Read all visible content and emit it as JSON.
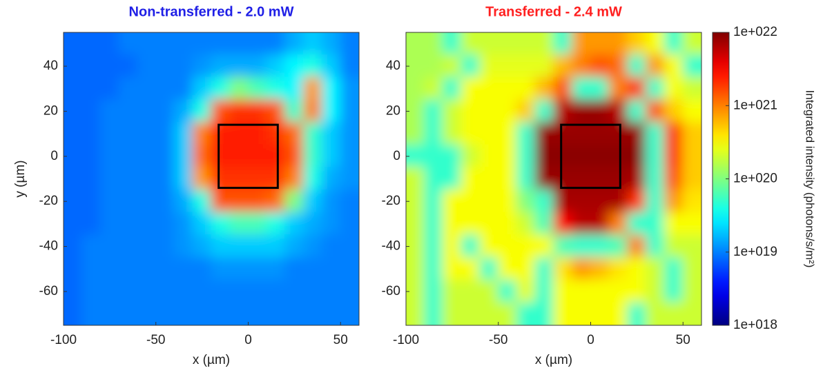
{
  "chart_data": [
    {
      "type": "heatmap",
      "title": "Non-transferred - 2.0 mW",
      "title_color": "#1f1fe6",
      "xlabel": "x (µm)",
      "ylabel": "y (µm)",
      "xlim": [
        -100,
        60
      ],
      "ylim": [
        -75,
        55
      ],
      "xticks": [
        -100,
        -50,
        0,
        50
      ],
      "yticks": [
        40,
        20,
        0,
        -20,
        -40,
        -60
      ],
      "x": [
        -95,
        -85,
        -75,
        -65,
        -55,
        -45,
        -35,
        -25,
        -15,
        -5,
        5,
        15,
        25,
        35,
        45,
        55
      ],
      "y": [
        50,
        40,
        30,
        20,
        10,
        0,
        -10,
        -20,
        -30,
        -40,
        -50,
        -60,
        -70
      ],
      "colormap": "jet",
      "log_scale": true,
      "zlim": [
        1e+18,
        1e+22
      ],
      "box": {
        "x": [
          -16,
          16
        ],
        "y": [
          -14,
          14
        ]
      },
      "z": [
        [
          8e+18,
          8e+18,
          8e+18,
          1e+19,
          1e+19,
          1e+19,
          1e+19,
          1e+19,
          1e+19,
          1e+19,
          1e+19,
          1e+19,
          1.5e+19,
          2e+19,
          1.5e+19,
          1e+19
        ],
        [
          8e+18,
          8e+18,
          8e+18,
          8e+18,
          1e+19,
          1e+19,
          1e+19,
          1.2e+19,
          1.5e+19,
          1.5e+19,
          1.5e+19,
          2e+19,
          3e+19,
          4e+19,
          2e+19,
          1e+19
        ],
        [
          8e+18,
          8e+18,
          8e+18,
          1e+19,
          1e+19,
          1e+19,
          1e+19,
          2e+19,
          4e+19,
          1e+20,
          6e+19,
          4e+19,
          3e+19,
          8e+20,
          3e+19,
          1.2e+19
        ],
        [
          8e+18,
          8e+18,
          1e+19,
          1e+19,
          1e+19,
          1e+19,
          1.5e+19,
          4e+19,
          1.5e+21,
          2e+21,
          2e+21,
          1.5e+21,
          5e+19,
          1e+21,
          3e+19,
          1.2e+19
        ],
        [
          8e+18,
          8e+18,
          1e+19,
          1e+19,
          1e+19,
          1e+19,
          2e+19,
          1e+21,
          2.5e+21,
          2.5e+21,
          2.5e+21,
          2e+21,
          1.2e+21,
          5e+19,
          2e+19,
          1.2e+19
        ],
        [
          8e+18,
          8e+18,
          1e+19,
          1e+19,
          1e+19,
          1e+19,
          2e+19,
          1.2e+21,
          2.5e+21,
          2.5e+21,
          2.5e+21,
          2.5e+21,
          1.5e+21,
          5e+19,
          2e+19,
          1.2e+19
        ],
        [
          8e+18,
          8e+18,
          1e+19,
          1e+19,
          1e+19,
          1e+19,
          2e+19,
          8e+20,
          2e+21,
          2e+21,
          2e+21,
          2e+21,
          1e+21,
          4e+19,
          1.5e+19,
          1.2e+19
        ],
        [
          8e+18,
          8e+18,
          1e+19,
          1e+19,
          1e+19,
          1e+19,
          1.5e+19,
          4e+19,
          1.5e+21,
          1.5e+21,
          1.5e+21,
          1.2e+21,
          1e+20,
          2e+19,
          1.2e+19,
          1e+19
        ],
        [
          8e+18,
          8e+18,
          1e+19,
          1e+19,
          1e+19,
          1e+19,
          1.2e+19,
          2e+19,
          4e+19,
          6e+19,
          6e+19,
          4e+19,
          2e+19,
          1.5e+19,
          1.2e+19,
          1e+19
        ],
        [
          8e+18,
          1e+19,
          1e+19,
          1e+19,
          1e+19,
          1e+19,
          1.2e+19,
          1.5e+19,
          2e+19,
          2e+19,
          2e+19,
          2e+19,
          1.5e+19,
          1.2e+19,
          1e+19,
          1e+19
        ],
        [
          8e+18,
          1e+19,
          1e+19,
          1e+19,
          1e+19,
          1e+19,
          1e+19,
          1e+19,
          1.2e+19,
          1.2e+19,
          1.2e+19,
          1.2e+19,
          1e+19,
          1e+19,
          1e+19,
          1e+19
        ],
        [
          8e+18,
          1e+19,
          1e+19,
          1e+19,
          1e+19,
          1e+19,
          1e+19,
          1e+19,
          1e+19,
          1e+19,
          1e+19,
          1e+19,
          1e+19,
          1e+19,
          1e+19,
          1e+19
        ],
        [
          8e+18,
          1e+19,
          1e+19,
          1e+19,
          1e+19,
          1e+19,
          1e+19,
          1e+19,
          1e+19,
          1e+19,
          1e+19,
          1e+19,
          1e+19,
          1e+19,
          1e+19,
          1e+19
        ]
      ]
    },
    {
      "type": "heatmap",
      "title": "Transferred - 2.4 mW",
      "title_color": "#ff2020",
      "xlabel": "x (µm)",
      "xlim": [
        -100,
        60
      ],
      "ylim": [
        -75,
        55
      ],
      "xticks": [
        -100,
        -50,
        0,
        50
      ],
      "yticks": [
        40,
        20,
        0,
        -20,
        -40,
        -60
      ],
      "x": [
        -95,
        -85,
        -75,
        -65,
        -55,
        -45,
        -35,
        -25,
        -15,
        -5,
        5,
        15,
        25,
        35,
        45,
        55
      ],
      "y": [
        50,
        40,
        30,
        20,
        10,
        0,
        -10,
        -20,
        -30,
        -40,
        -50,
        -60,
        -70
      ],
      "colormap": "jet",
      "log_scale": true,
      "zlim": [
        1e+18,
        1e+22
      ],
      "zlabel": "Integrated intensity (photons/s/m²)",
      "zticks": [
        {
          "value": 1e+22,
          "label": "1e+022"
        },
        {
          "value": 1e+21,
          "label": "1e+021"
        },
        {
          "value": 1e+20,
          "label": "1e+020"
        },
        {
          "value": 1e+19,
          "label": "1e+019"
        },
        {
          "value": 1e+18,
          "label": "1e+018"
        }
      ],
      "box": {
        "x": [
          -16,
          16
        ],
        "y": [
          -14,
          14
        ]
      },
      "z": [
        [
          1.5e+20,
          1.5e+20,
          5e+19,
          2e+20,
          2e+20,
          2e+20,
          2e+20,
          2e+20,
          5e+19,
          8e+20,
          8e+20,
          8e+20,
          5e+20,
          3e+20,
          5e+19,
          2e+20
        ],
        [
          1.5e+20,
          1.5e+20,
          2e+20,
          5e+19,
          2.5e+20,
          2.5e+20,
          2.5e+20,
          2.5e+20,
          6e+20,
          1e+21,
          1.5e+21,
          1.2e+21,
          5e+19,
          8e+20,
          3e+20,
          5e+19
        ],
        [
          1.5e+20,
          2e+20,
          5e+19,
          3e+20,
          3e+20,
          3e+20,
          3e+20,
          6e+20,
          1.5e+21,
          5e+19,
          5e+19,
          1e+21,
          2e+21,
          5e+19,
          3e+20,
          2e+20
        ],
        [
          1.5e+20,
          5e+19,
          2e+20,
          3e+20,
          3e+20,
          3e+20,
          5e+20,
          5e+19,
          6e+21,
          8e+21,
          8e+21,
          6e+21,
          5e+19,
          1.5e+21,
          5e+20,
          3e+20
        ],
        [
          1.5e+20,
          5e+19,
          2e+20,
          3e+20,
          3e+20,
          3e+20,
          5e+19,
          8e+21,
          8e+21,
          8e+21,
          8e+21,
          8e+21,
          8e+21,
          5e+19,
          2e+21,
          5e+20
        ],
        [
          5e+19,
          5e+19,
          5e+19,
          2e+20,
          3e+20,
          3e+20,
          5e+19,
          9e+21,
          9e+21,
          9e+21,
          9e+21,
          9e+21,
          9e+21,
          5e+19,
          2e+21,
          5e+20
        ],
        [
          2e+20,
          5e+19,
          5e+19,
          3e+20,
          3e+20,
          3e+20,
          5e+19,
          8e+21,
          8e+21,
          8e+21,
          8e+21,
          8e+21,
          7e+21,
          5e+19,
          1.5e+21,
          5e+20
        ],
        [
          2e+20,
          5e+19,
          3e+20,
          3e+20,
          3e+20,
          3e+20,
          1e+20,
          5e+19,
          7e+21,
          7e+21,
          7e+21,
          7e+21,
          2e+21,
          5e+19,
          8e+20,
          4e+20
        ],
        [
          2e+20,
          5e+19,
          3e+20,
          3e+20,
          3e+20,
          3e+20,
          2e+20,
          6e+19,
          3e+21,
          6e+21,
          6e+21,
          1e+21,
          5e+19,
          5e+19,
          3e+20,
          3e+20
        ],
        [
          2e+20,
          5e+19,
          3e+20,
          5e+19,
          3e+20,
          3e+20,
          3e+20,
          3e+20,
          6e+19,
          5e+19,
          5e+19,
          6e+19,
          1e+21,
          5e+19,
          2e+20,
          2e+20
        ],
        [
          2e+20,
          5e+19,
          3e+20,
          3e+20,
          5e+19,
          3e+20,
          3e+20,
          5e+19,
          4e+20,
          8e+20,
          6e+20,
          4e+20,
          3e+20,
          2e+20,
          5e+19,
          2e+20
        ],
        [
          2e+20,
          5e+19,
          2e+20,
          2e+20,
          2e+20,
          5e+19,
          2.5e+20,
          5e+19,
          3e+20,
          3e+20,
          3e+20,
          3e+20,
          3e+20,
          2e+20,
          5e+19,
          2e+20
        ],
        [
          2e+20,
          5e+19,
          2e+20,
          2e+20,
          2e+20,
          2e+20,
          5e+19,
          5e+19,
          3e+20,
          3e+20,
          3e+20,
          3e+20,
          5e+19,
          2e+20,
          2e+20,
          2e+20
        ]
      ]
    }
  ]
}
